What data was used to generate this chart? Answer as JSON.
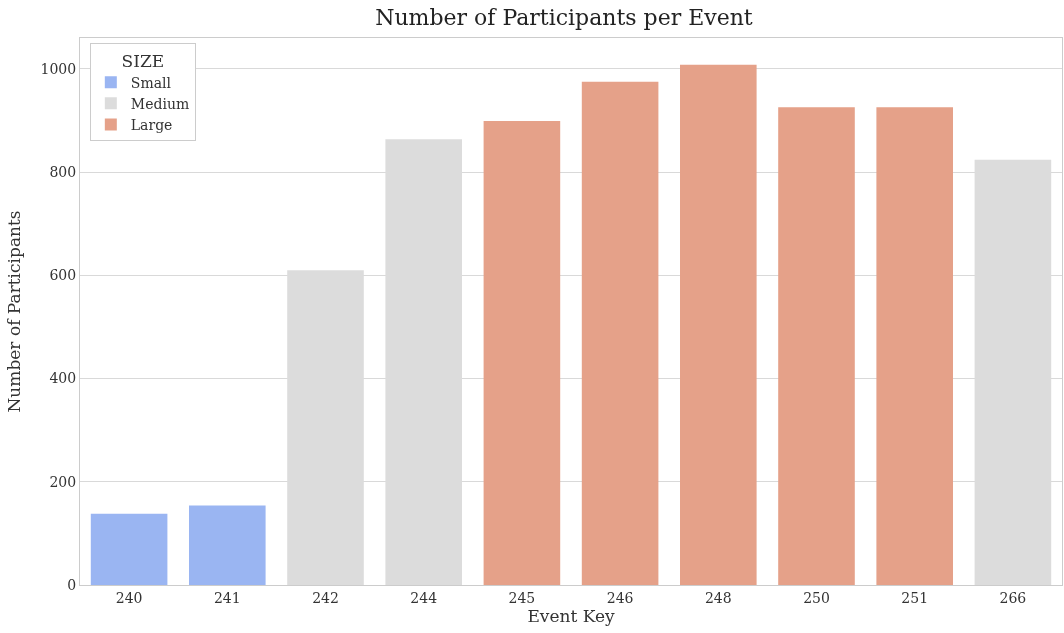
{
  "chart_data": {
    "type": "bar",
    "title": "Number of Participants per Event",
    "xlabel": "Event Key",
    "ylabel": "Number of Participants",
    "legend_title": "SIZE",
    "categories": [
      "240",
      "241",
      "242",
      "244",
      "245",
      "246",
      "248",
      "250",
      "251",
      "266"
    ],
    "series": [
      {
        "name": "Small",
        "color": "#9ab5f2",
        "values": [
          138,
          154,
          null,
          null,
          null,
          null,
          null,
          null,
          null,
          null
        ]
      },
      {
        "name": "Medium",
        "color": "#dcdcdc",
        "values": [
          null,
          null,
          610,
          864,
          null,
          null,
          null,
          null,
          null,
          824
        ]
      },
      {
        "name": "Large",
        "color": "#e5a189",
        "values": [
          null,
          null,
          null,
          null,
          899,
          975,
          1008,
          926,
          926,
          null
        ]
      }
    ],
    "ylim": [
      0,
      1060
    ],
    "yticks": [
      0,
      200,
      400,
      600,
      800,
      1000
    ],
    "grid": "y",
    "legend": "top left"
  }
}
